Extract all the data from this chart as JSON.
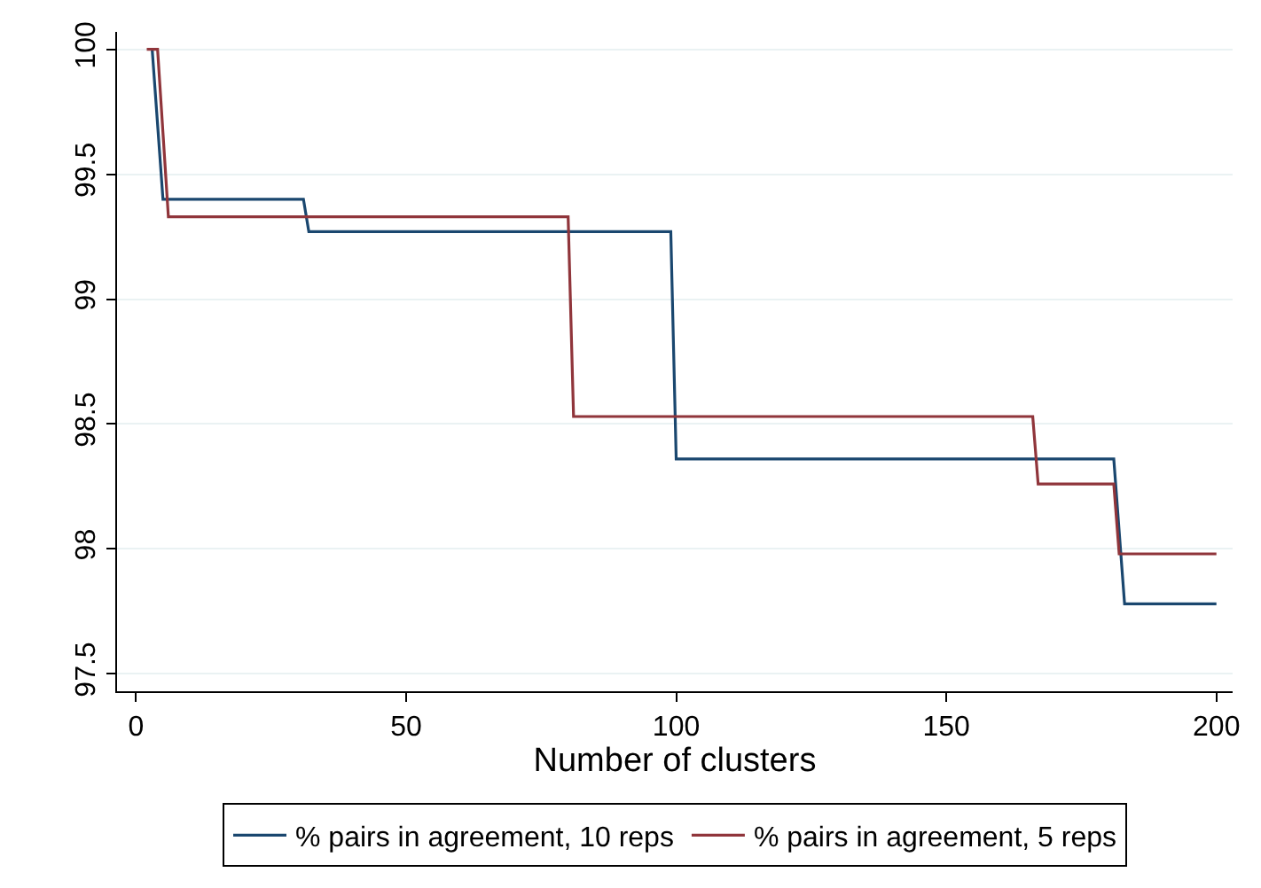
{
  "chart_data": {
    "type": "line",
    "xlabel": "Number of clusters",
    "series": [
      {
        "name": "% pairs in agreement, 10 reps",
        "color": "#1a476f",
        "x": [
          3,
          5,
          31,
          32,
          99,
          100,
          181,
          183,
          200
        ],
        "values": [
          100,
          99.4,
          99.4,
          99.27,
          99.27,
          98.36,
          98.36,
          97.78,
          97.78
        ]
      },
      {
        "name": "% pairs in agreement, 5 reps",
        "color": "#90353b",
        "x": [
          2,
          4,
          6,
          80,
          81,
          166,
          167,
          181,
          182,
          200
        ],
        "values": [
          100,
          100,
          99.33,
          99.33,
          98.53,
          98.53,
          98.26,
          98.26,
          97.98,
          97.98
        ]
      }
    ],
    "xlim": [
      -3.5,
      203
    ],
    "xticks": [
      0,
      50,
      100,
      150,
      200
    ],
    "ylim": [
      97.43,
      100.07
    ],
    "yticks": [
      97.5,
      98,
      98.5,
      99,
      99.5,
      100
    ],
    "grid": "y",
    "legend": "bottom",
    "marker": "none",
    "line_style": "solid"
  }
}
